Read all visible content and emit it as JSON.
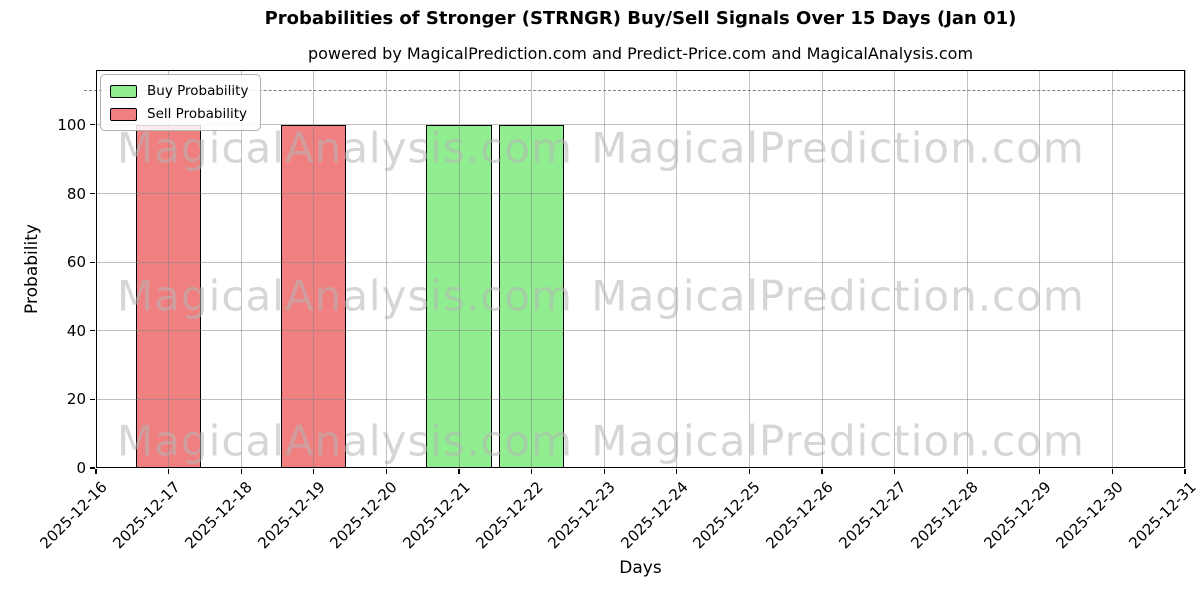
{
  "title": "Probabilities of Stronger (STRNGR) Buy/Sell Signals Over 15 Days (Jan 01)",
  "subtitle": "powered by MagicalPrediction.com and Predict-Price.com and MagicalAnalysis.com",
  "watermarks": {
    "left_text": "MagicalAnalysis.com",
    "right_text": "MagicalPrediction.com"
  },
  "colors": {
    "buy": "#90ee90",
    "sell": "#f08080",
    "bar_edge": "#000000",
    "grid": "#999999",
    "dashed_line": "#7f7f7f",
    "watermark": "#d9d9d9",
    "background": "#ffffff"
  },
  "chart_data": {
    "type": "bar",
    "title": "Probabilities of Stronger (STRNGR) Buy/Sell Signals Over 15 Days (Jan 01)",
    "xlabel": "Days",
    "ylabel": "Probability",
    "categories": [
      "2025-12-16",
      "2025-12-17",
      "2025-12-18",
      "2025-12-19",
      "2025-12-20",
      "2025-12-21",
      "2025-12-22",
      "2025-12-23",
      "2025-12-24",
      "2025-12-25",
      "2025-12-26",
      "2025-12-27",
      "2025-12-28",
      "2025-12-29",
      "2025-12-30",
      "2025-12-31"
    ],
    "series": [
      {
        "name": "Buy Probability",
        "color": "#90ee90",
        "values": [
          0,
          0,
          0,
          0,
          0,
          100,
          100,
          0,
          0,
          0,
          0,
          0,
          0,
          0,
          0,
          0
        ]
      },
      {
        "name": "Sell Probability",
        "color": "#f08080",
        "values": [
          0,
          100,
          0,
          100,
          0,
          0,
          0,
          0,
          0,
          0,
          0,
          0,
          0,
          0,
          0,
          0
        ]
      }
    ],
    "yticks": [
      0,
      20,
      40,
      60,
      80,
      100
    ],
    "ylim": [
      0,
      116
    ],
    "dashed_hline_y": 110,
    "grid": true,
    "legend_position": "upper left",
    "bar_width_fraction": 0.9,
    "x_tick_rotation_deg": 45
  }
}
